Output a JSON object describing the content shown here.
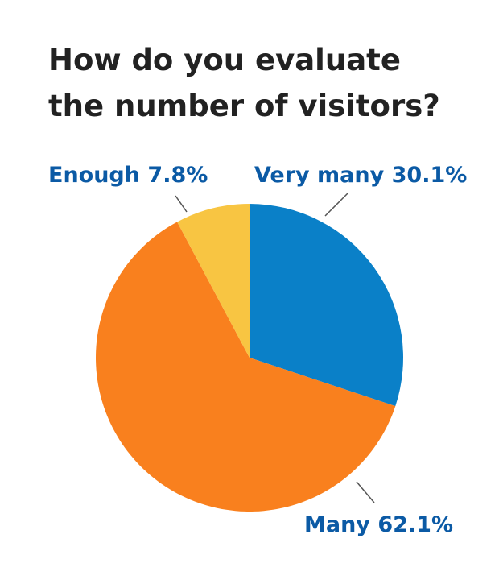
{
  "chart_data": {
    "type": "pie",
    "title": "How do you evaluate the number of visitors?",
    "categories": [
      "Very many",
      "Many",
      "Enough"
    ],
    "values": [
      30.1,
      62.1,
      7.8
    ],
    "value_labels": [
      "30.1%",
      "62.1%",
      "7.8%"
    ],
    "colors": [
      "#0a80c8",
      "#f9801e",
      "#f8c542"
    ]
  }
}
